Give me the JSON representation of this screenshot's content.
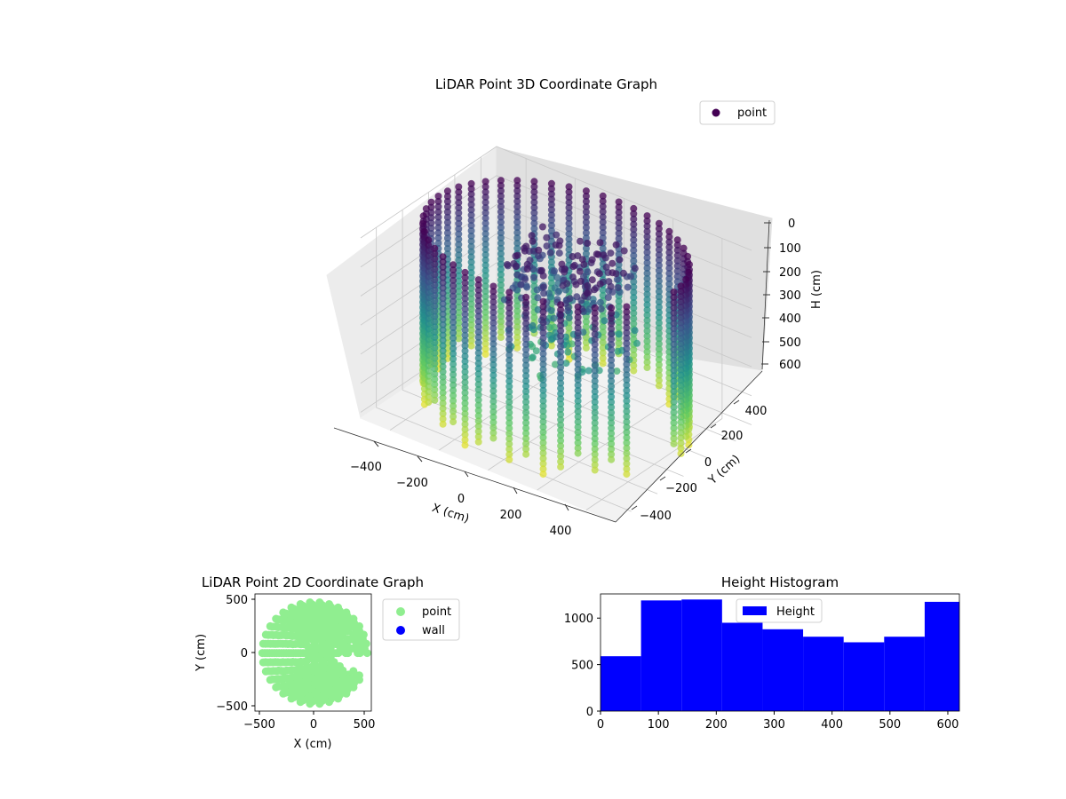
{
  "chart_data": [
    {
      "type": "scatter",
      "projection": "3d",
      "title": "LiDAR Point 3D Coordinate Graph",
      "xlabel": "X (cm)",
      "ylabel": "Y (cm)",
      "zlabel": "H (cm)",
      "xlim": [
        -520,
        520
      ],
      "ylim": [
        -520,
        520
      ],
      "zlim": [
        0,
        620
      ],
      "z_inverted": true,
      "xticks": [
        "−400",
        "−200",
        "0",
        "200",
        "400"
      ],
      "yticks": [
        "−400",
        "−200",
        "0",
        "200",
        "400"
      ],
      "zticks": [
        "0",
        "100",
        "200",
        "300",
        "400",
        "500",
        "600"
      ],
      "colormap": [
        "#440154",
        "#3b528b",
        "#21918c",
        "#5ec962",
        "#fde725"
      ],
      "grid": true,
      "legend": {
        "placement": "upper right",
        "entries": [
          {
            "label": "point",
            "color": "#440154"
          }
        ]
      },
      "series": [
        {
          "name": "point",
          "shape": "cylindrical wall of vertical point columns with central object",
          "radius": 480,
          "column_count": 48,
          "z_range": [
            0,
            610
          ],
          "gap_angle_range_deg": [
            -25,
            0
          ],
          "center_cluster": {
            "x_range": [
              -150,
              220
            ],
            "y_range": [
              -180,
              260
            ],
            "z_range": [
              40,
              420
            ]
          }
        }
      ]
    },
    {
      "type": "scatter",
      "title": "LiDAR Point 2D Coordinate Graph",
      "xlabel": "X (cm)",
      "ylabel": "Y (cm)",
      "xlim": [
        -550,
        520
      ],
      "ylim": [
        -550,
        560
      ],
      "xticks": [
        "−500",
        "0",
        "500"
      ],
      "yticks": [
        "−500",
        "0",
        "500"
      ],
      "legend": {
        "placement": "outside right",
        "entries": [
          {
            "label": "point",
            "color": "#90ee90"
          },
          {
            "label": "wall",
            "color": "#0000ff"
          }
        ]
      },
      "series": [
        {
          "name": "point",
          "color": "#90ee90",
          "shape": "filled disc of points",
          "radius": 500,
          "center": [
            0,
            0
          ],
          "gap_angle_range_deg": [
            -25,
            0
          ]
        },
        {
          "name": "wall",
          "color": "#0000ff",
          "points": []
        }
      ]
    },
    {
      "type": "bar",
      "subtype": "histogram",
      "title": "Height Histogram",
      "xlabel": "",
      "ylabel": "",
      "xlim": [
        0,
        620
      ],
      "ylim": [
        0,
        1260
      ],
      "xticks": [
        "0",
        "100",
        "200",
        "300",
        "400",
        "500",
        "600"
      ],
      "yticks": [
        "0",
        "500",
        "1000"
      ],
      "bin_edges": [
        0,
        70,
        140,
        210,
        280,
        350,
        420,
        490,
        560,
        620
      ],
      "values": [
        590,
        1190,
        1200,
        950,
        880,
        800,
        740,
        800,
        1175
      ],
      "color": "#0000ff",
      "legend": {
        "placement": "upper center",
        "entries": [
          {
            "label": "Height",
            "color": "#0000ff"
          }
        ]
      }
    }
  ]
}
